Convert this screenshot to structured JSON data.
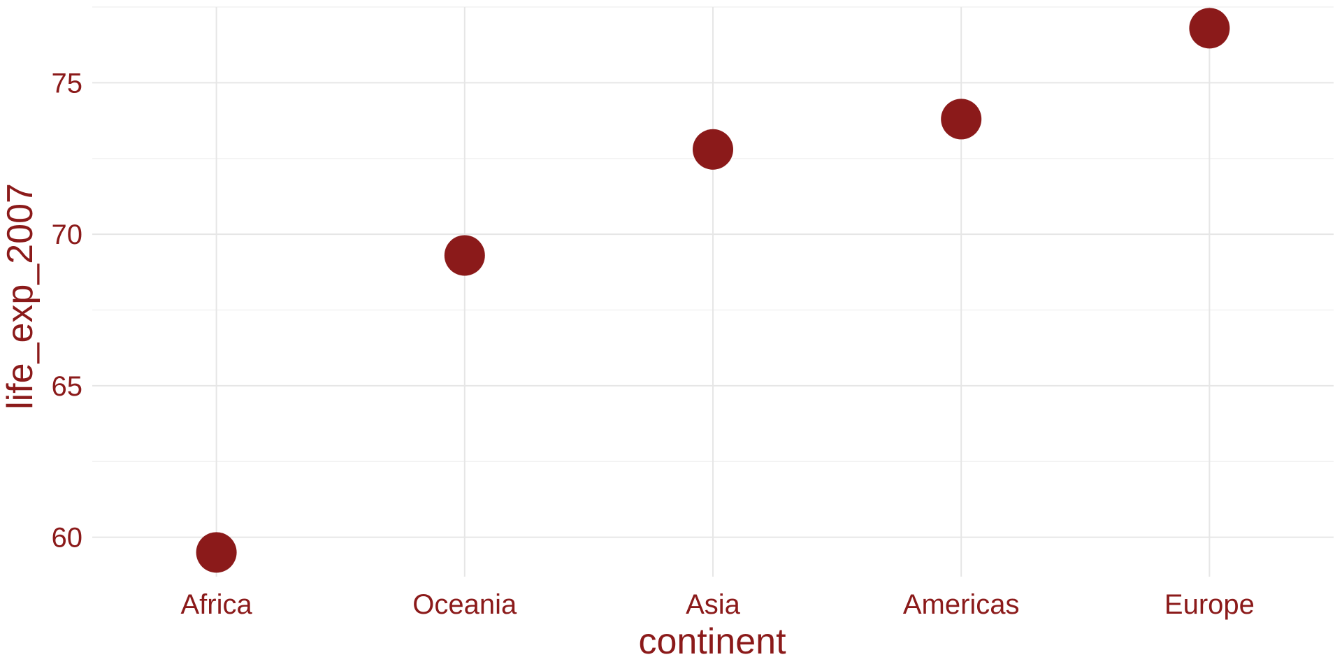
{
  "chart_data": {
    "type": "scatter",
    "title": "",
    "xlabel": "continent",
    "ylabel": "life_exp_2007",
    "categories": [
      "Africa",
      "Oceania",
      "Asia",
      "Americas",
      "Europe"
    ],
    "values": [
      59.5,
      69.3,
      72.8,
      73.8,
      76.8
    ],
    "ylim": [
      58.7,
      77.5
    ],
    "yticks": [
      60,
      65,
      70,
      75
    ],
    "ytick_labels": [
      "60",
      "65",
      "70",
      "75"
    ],
    "grid": true,
    "legend": "none",
    "colors": {
      "point": "#8b1a1a",
      "text": "#8b1a1a",
      "grid_major": "#e6e6e6",
      "grid_minor": "#f2f2f2"
    }
  }
}
